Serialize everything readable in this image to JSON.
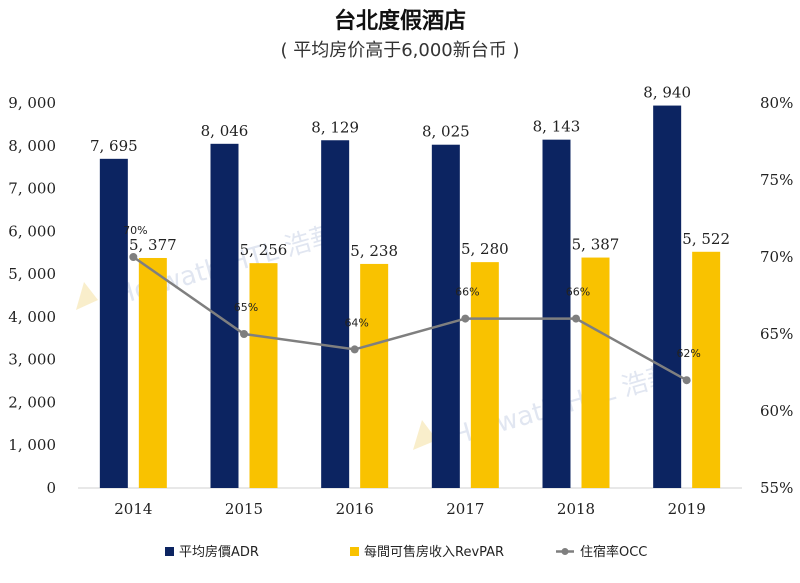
{
  "chart_data": {
    "type": "bar",
    "title": "台北度假酒店",
    "subtitle": "( 平均房价高于6,000新台币  )",
    "categories": [
      "2014",
      "2015",
      "2016",
      "2017",
      "2018",
      "2019"
    ],
    "series": [
      {
        "name": "平均房價ADR",
        "kind": "bar",
        "axis": "left",
        "color": "#0c2461",
        "values": [
          7695,
          8046,
          8129,
          8025,
          8143,
          8940
        ],
        "labels": [
          "7, 695",
          "8, 046",
          "8, 129",
          "8, 025",
          "8, 143",
          "8, 940"
        ]
      },
      {
        "name": "每間可售房收入RevPAR",
        "kind": "bar",
        "axis": "left",
        "color": "#f9c200",
        "values": [
          5377,
          5256,
          5238,
          5280,
          5387,
          5522
        ],
        "labels": [
          "5, 377",
          "5, 256",
          "5, 238",
          "5, 280",
          "5, 387",
          "5, 522"
        ]
      },
      {
        "name": "住宿率OCC",
        "kind": "line",
        "axis": "right",
        "color": "#7f7f7f",
        "values": [
          70,
          65,
          64,
          66,
          66,
          62
        ],
        "labels": [
          "70%",
          "65%",
          "64%",
          "66%",
          "66%",
          "62%"
        ]
      }
    ],
    "ylim": [
      0,
      9000
    ],
    "y_ticks": [
      0,
      1000,
      2000,
      3000,
      4000,
      5000,
      6000,
      7000,
      8000,
      9000
    ],
    "y_tick_labels": [
      "0",
      "1, 000",
      "2, 000",
      "3, 000",
      "4, 000",
      "5, 000",
      "6, 000",
      "7, 000",
      "8, 000",
      "9, 000"
    ],
    "y2lim": [
      55,
      80
    ],
    "y2_ticks": [
      55,
      60,
      65,
      70,
      75,
      80
    ],
    "y2_tick_labels": [
      "55%",
      "60%",
      "65%",
      "70%",
      "75%",
      "80%"
    ],
    "legend_position": "bottom",
    "grid": false
  },
  "watermark": {
    "text_1": "Horwath HTL 浩華",
    "text_2": "Horwath HTL 浩華"
  }
}
